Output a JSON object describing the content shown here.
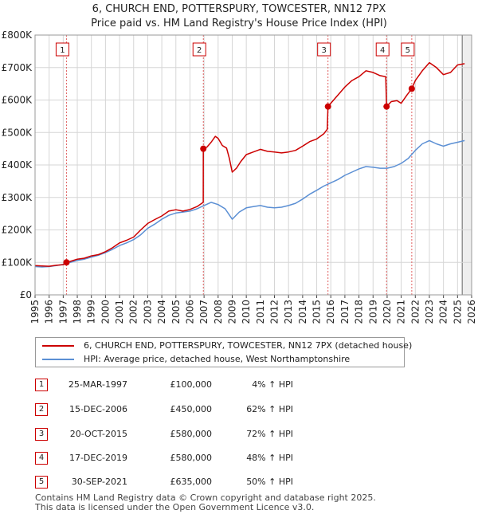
{
  "title_line1": "6, CHURCH END, POTTERSPURY, TOWCESTER, NN12 7PX",
  "title_line2": "Price paid vs. HM Land Registry's House Price Index (HPI)",
  "chart_data": {
    "type": "line",
    "xlim": [
      1995,
      2026
    ],
    "ylim": [
      0,
      800000
    ],
    "y_ticks": [
      0,
      100000,
      200000,
      300000,
      400000,
      500000,
      600000,
      700000,
      800000
    ],
    "y_tick_labels": [
      "£0",
      "£100K",
      "£200K",
      "£300K",
      "£400K",
      "£500K",
      "£600K",
      "£700K",
      "£800K"
    ],
    "x_ticks": [
      1995,
      1996,
      1997,
      1998,
      1999,
      2000,
      2001,
      2002,
      2003,
      2004,
      2005,
      2006,
      2007,
      2008,
      2009,
      2010,
      2011,
      2012,
      2013,
      2014,
      2015,
      2016,
      2017,
      2018,
      2019,
      2020,
      2021,
      2022,
      2023,
      2024,
      2025,
      2026
    ],
    "x_tick_labels": [
      "1995",
      "1996",
      "1997",
      "1998",
      "1999",
      "2000",
      "2001",
      "2002",
      "2003",
      "2004",
      "2005",
      "2006",
      "2007",
      "2008",
      "2009",
      "2010",
      "2011",
      "2012",
      "2013",
      "2014",
      "2015",
      "2016",
      "2017",
      "2018",
      "2019",
      "2020",
      "2021",
      "2022",
      "2023",
      "2024",
      "2025",
      "2026"
    ],
    "grid": true,
    "future_shade_from": 2025.33,
    "series": [
      {
        "name": "6, CHURCH END, POTTERSPURY, TOWCESTER, NN12 7PX (detached house)",
        "color": "#cc0000",
        "points": [
          [
            1995.0,
            90000
          ],
          [
            1995.5,
            89000
          ],
          [
            1996.0,
            88000
          ],
          [
            1996.5,
            91000
          ],
          [
            1997.0,
            93000
          ],
          [
            1997.23,
            100000
          ],
          [
            1997.5,
            103000
          ],
          [
            1998.0,
            110000
          ],
          [
            1998.5,
            113000
          ],
          [
            1999.0,
            120000
          ],
          [
            1999.5,
            124000
          ],
          [
            2000.0,
            133000
          ],
          [
            2000.5,
            145000
          ],
          [
            2001.0,
            160000
          ],
          [
            2001.5,
            168000
          ],
          [
            2002.0,
            178000
          ],
          [
            2002.5,
            200000
          ],
          [
            2003.0,
            220000
          ],
          [
            2003.5,
            232000
          ],
          [
            2004.0,
            243000
          ],
          [
            2004.5,
            258000
          ],
          [
            2005.0,
            262000
          ],
          [
            2005.5,
            258000
          ],
          [
            2006.0,
            263000
          ],
          [
            2006.5,
            272000
          ],
          [
            2006.94,
            285000
          ],
          [
            2006.95,
            450000
          ],
          [
            2007.2,
            455000
          ],
          [
            2007.5,
            470000
          ],
          [
            2007.8,
            488000
          ],
          [
            2008.0,
            482000
          ],
          [
            2008.3,
            460000
          ],
          [
            2008.6,
            452000
          ],
          [
            2008.8,
            420000
          ],
          [
            2009.0,
            378000
          ],
          [
            2009.3,
            390000
          ],
          [
            2009.6,
            410000
          ],
          [
            2010.0,
            432000
          ],
          [
            2010.5,
            440000
          ],
          [
            2011.0,
            448000
          ],
          [
            2011.5,
            442000
          ],
          [
            2012.0,
            440000
          ],
          [
            2012.5,
            437000
          ],
          [
            2013.0,
            440000
          ],
          [
            2013.5,
            445000
          ],
          [
            2014.0,
            458000
          ],
          [
            2014.5,
            472000
          ],
          [
            2015.0,
            480000
          ],
          [
            2015.5,
            496000
          ],
          [
            2015.75,
            510000
          ],
          [
            2015.8,
            580000
          ],
          [
            2016.0,
            590000
          ],
          [
            2016.5,
            615000
          ],
          [
            2017.0,
            640000
          ],
          [
            2017.5,
            660000
          ],
          [
            2018.0,
            672000
          ],
          [
            2018.5,
            690000
          ],
          [
            2019.0,
            685000
          ],
          [
            2019.5,
            675000
          ],
          [
            2019.9,
            672000
          ],
          [
            2019.96,
            580000
          ],
          [
            2020.3,
            595000
          ],
          [
            2020.7,
            598000
          ],
          [
            2021.0,
            590000
          ],
          [
            2021.4,
            615000
          ],
          [
            2021.75,
            635000
          ],
          [
            2022.0,
            660000
          ],
          [
            2022.5,
            690000
          ],
          [
            2023.0,
            715000
          ],
          [
            2023.5,
            700000
          ],
          [
            2024.0,
            678000
          ],
          [
            2024.5,
            685000
          ],
          [
            2025.0,
            708000
          ],
          [
            2025.5,
            712000
          ]
        ]
      },
      {
        "name": "HPI: Average price, detached house, West Northamptonshire",
        "color": "#5b8fd4",
        "points": [
          [
            1995.0,
            87000
          ],
          [
            1995.5,
            86000
          ],
          [
            1996.0,
            87000
          ],
          [
            1996.5,
            90000
          ],
          [
            1997.0,
            94000
          ],
          [
            1997.5,
            100000
          ],
          [
            1998.0,
            106000
          ],
          [
            1998.5,
            110000
          ],
          [
            1999.0,
            116000
          ],
          [
            1999.5,
            122000
          ],
          [
            2000.0,
            130000
          ],
          [
            2000.5,
            140000
          ],
          [
            2001.0,
            152000
          ],
          [
            2001.5,
            160000
          ],
          [
            2002.0,
            170000
          ],
          [
            2002.5,
            185000
          ],
          [
            2003.0,
            205000
          ],
          [
            2003.5,
            218000
          ],
          [
            2004.0,
            233000
          ],
          [
            2004.5,
            245000
          ],
          [
            2005.0,
            252000
          ],
          [
            2005.5,
            255000
          ],
          [
            2006.0,
            258000
          ],
          [
            2006.5,
            265000
          ],
          [
            2007.0,
            275000
          ],
          [
            2007.5,
            285000
          ],
          [
            2008.0,
            278000
          ],
          [
            2008.5,
            265000
          ],
          [
            2009.0,
            233000
          ],
          [
            2009.5,
            255000
          ],
          [
            2010.0,
            268000
          ],
          [
            2010.5,
            272000
          ],
          [
            2011.0,
            275000
          ],
          [
            2011.5,
            270000
          ],
          [
            2012.0,
            268000
          ],
          [
            2012.5,
            270000
          ],
          [
            2013.0,
            275000
          ],
          [
            2013.5,
            282000
          ],
          [
            2014.0,
            295000
          ],
          [
            2014.5,
            310000
          ],
          [
            2015.0,
            322000
          ],
          [
            2015.5,
            335000
          ],
          [
            2016.0,
            345000
          ],
          [
            2016.5,
            355000
          ],
          [
            2017.0,
            368000
          ],
          [
            2017.5,
            378000
          ],
          [
            2018.0,
            388000
          ],
          [
            2018.5,
            395000
          ],
          [
            2019.0,
            393000
          ],
          [
            2019.5,
            390000
          ],
          [
            2020.0,
            390000
          ],
          [
            2020.5,
            395000
          ],
          [
            2021.0,
            405000
          ],
          [
            2021.5,
            420000
          ],
          [
            2022.0,
            445000
          ],
          [
            2022.5,
            465000
          ],
          [
            2023.0,
            475000
          ],
          [
            2023.5,
            465000
          ],
          [
            2024.0,
            458000
          ],
          [
            2024.5,
            465000
          ],
          [
            2025.0,
            470000
          ],
          [
            2025.5,
            475000
          ]
        ]
      }
    ],
    "sales": [
      {
        "label": "1",
        "x": 1997.23,
        "price": 100000
      },
      {
        "label": "2",
        "x": 2006.95,
        "price": 450000
      },
      {
        "label": "3",
        "x": 2015.8,
        "price": 580000
      },
      {
        "label": "4",
        "x": 2019.96,
        "price": 580000
      },
      {
        "label": "5",
        "x": 2021.75,
        "price": 635000
      }
    ]
  },
  "legend": {
    "property_label": "6, CHURCH END, POTTERSPURY, TOWCESTER, NN12 7PX (detached house)",
    "hpi_label": "HPI: Average price, detached house, West Northamptonshire",
    "property_color": "#cc0000",
    "hpi_color": "#5b8fd4"
  },
  "transactions": [
    {
      "num": "1",
      "date": "25-MAR-1997",
      "price": "£100,000",
      "hpi": "4% ↑ HPI"
    },
    {
      "num": "2",
      "date": "15-DEC-2006",
      "price": "£450,000",
      "hpi": "62% ↑ HPI"
    },
    {
      "num": "3",
      "date": "20-OCT-2015",
      "price": "£580,000",
      "hpi": "72% ↑ HPI"
    },
    {
      "num": "4",
      "date": "17-DEC-2019",
      "price": "£580,000",
      "hpi": "48% ↑ HPI"
    },
    {
      "num": "5",
      "date": "30-SEP-2021",
      "price": "£635,000",
      "hpi": "50% ↑ HPI"
    }
  ],
  "footer_line1": "Contains HM Land Registry data © Crown copyright and database right 2025.",
  "footer_line2": "This data is licensed under the Open Government Licence v3.0."
}
